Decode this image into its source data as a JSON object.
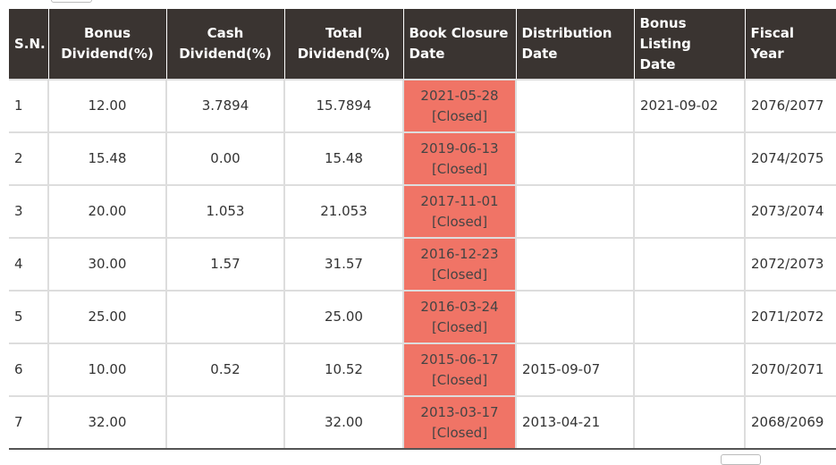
{
  "table": {
    "headers": [
      {
        "line1": "S.N.",
        "line2": ""
      },
      {
        "line1": "Bonus",
        "line2": "Dividend(%)"
      },
      {
        "line1": "Cash",
        "line2": "Dividend(%)"
      },
      {
        "line1": "Total",
        "line2": "Dividend(%)"
      },
      {
        "line1": "Book Closure",
        "line2": "Date"
      },
      {
        "line1": "Distribution",
        "line2": "Date"
      },
      {
        "line1": "Bonus Listing",
        "line2": "Date"
      },
      {
        "line1": "Fiscal",
        "line2": "Year"
      }
    ],
    "rows": [
      {
        "sn": "1",
        "bonus": "12.00",
        "cash": "3.7894",
        "total": "15.7894",
        "book_date": "2021-05-28",
        "book_status": "[Closed]",
        "distribution": "",
        "listing": "2021-09-02",
        "fiscal": "2076/2077"
      },
      {
        "sn": "2",
        "bonus": "15.48",
        "cash": "0.00",
        "total": "15.48",
        "book_date": "2019-06-13",
        "book_status": "[Closed]",
        "distribution": "",
        "listing": "",
        "fiscal": "2074/2075"
      },
      {
        "sn": "3",
        "bonus": "20.00",
        "cash": "1.053",
        "total": "21.053",
        "book_date": "2017-11-01",
        "book_status": "[Closed]",
        "distribution": "",
        "listing": "",
        "fiscal": "2073/2074"
      },
      {
        "sn": "4",
        "bonus": "30.00",
        "cash": "1.57",
        "total": "31.57",
        "book_date": "2016-12-23",
        "book_status": "[Closed]",
        "distribution": "",
        "listing": "",
        "fiscal": "2072/2073"
      },
      {
        "sn": "5",
        "bonus": "25.00",
        "cash": "",
        "total": "25.00",
        "book_date": "2016-03-24",
        "book_status": "[Closed]",
        "distribution": "",
        "listing": "",
        "fiscal": "2071/2072"
      },
      {
        "sn": "6",
        "bonus": "10.00",
        "cash": "0.52",
        "total": "10.52",
        "book_date": "2015-06-17",
        "book_status": "[Closed]",
        "distribution": "2015-09-07",
        "listing": "",
        "fiscal": "2070/2071"
      },
      {
        "sn": "7",
        "bonus": "32.00",
        "cash": "",
        "total": "32.00",
        "book_date": "2013-03-17",
        "book_status": "[Closed]",
        "distribution": "2013-04-21",
        "listing": "",
        "fiscal": "2068/2069"
      }
    ]
  },
  "colors": {
    "header_bg": "#3a3431",
    "closed_bg": "#f07466"
  }
}
